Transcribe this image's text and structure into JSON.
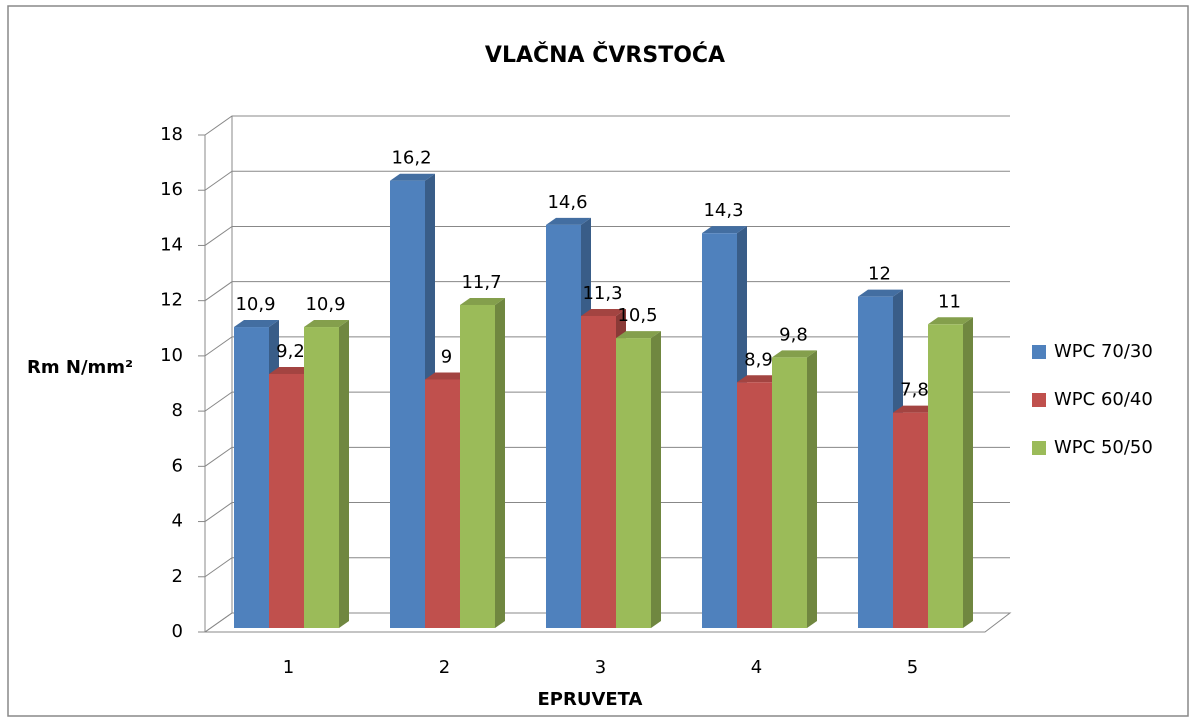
{
  "chart_data": {
    "type": "bar3d",
    "title": "VLAČNA ČVRSTOĆA",
    "x_label": "EPRUVETA",
    "y_label": "Rm N/mm²",
    "categories": [
      "1",
      "2",
      "3",
      "4",
      "5"
    ],
    "series": [
      {
        "name": "WPC 70/30",
        "color": "#4f81bd",
        "values": [
          10.9,
          16.2,
          14.6,
          14.3,
          12
        ],
        "value_labels": [
          "10,9",
          "16,2",
          "14,6",
          "14,3",
          "12"
        ]
      },
      {
        "name": "WPC 60/40",
        "color": "#c0504d",
        "values": [
          9.2,
          9,
          11.3,
          8.9,
          7.8
        ],
        "value_labels": [
          "9,2",
          "9",
          "11,3",
          "8,9",
          "7,8"
        ]
      },
      {
        "name": "WPC 50/50",
        "color": "#9bbb59",
        "values": [
          10.9,
          11.7,
          10.5,
          9.8,
          11
        ],
        "value_labels": [
          "10,9",
          "11,7",
          "10,5",
          "9,8",
          "11"
        ]
      }
    ],
    "ylim": [
      0,
      18
    ],
    "yticks": [
      0,
      2,
      4,
      6,
      8,
      10,
      12,
      14,
      16,
      18
    ],
    "grid": true,
    "legend": "right"
  }
}
